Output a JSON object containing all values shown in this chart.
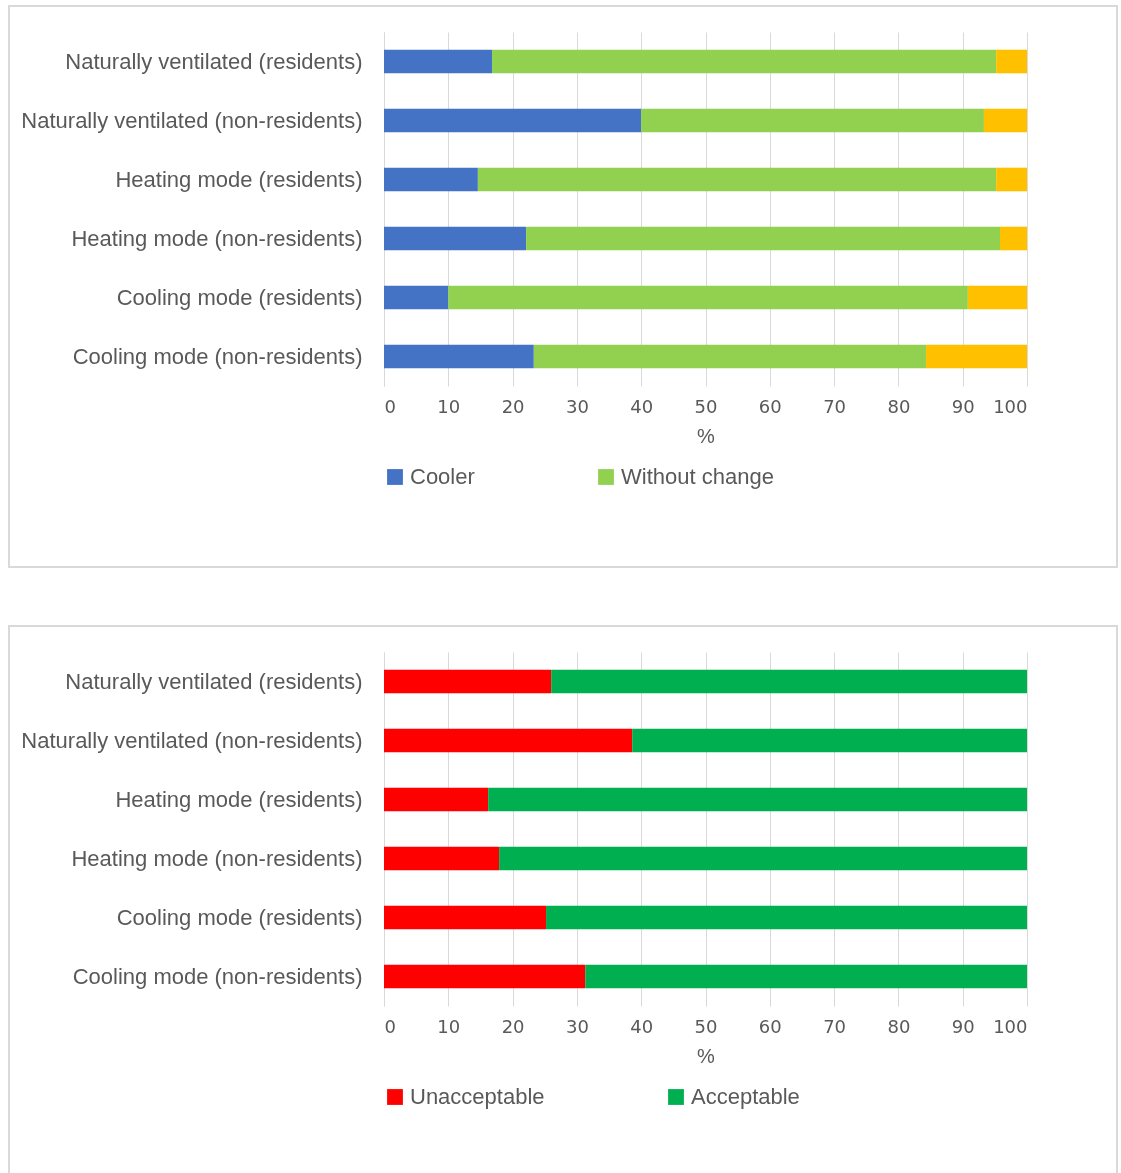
{
  "chart_data": [
    {
      "type": "bar",
      "orientation": "horizontal",
      "stacked": true,
      "categories": [
        "Naturally ventilated (residents)",
        "Naturally ventilated (non-residents)",
        "Heating mode (residents)",
        "Heating mode (non-residents)",
        "Cooling mode (residents)",
        "Cooling mode (non-residents)"
      ],
      "series": [
        {
          "name": "Cooler",
          "color": "#4472c4",
          "values": [
            16.8,
            40.0,
            14.6,
            22.1,
            10.0,
            23.3
          ]
        },
        {
          "name": "Without change",
          "color": "#92d050",
          "values": [
            78.4,
            53.3,
            80.6,
            73.7,
            80.8,
            61.0
          ]
        },
        {
          "color": "#ffc000",
          "values": [
            4.8,
            6.7,
            4.8,
            4.2,
            9.2,
            15.7
          ]
        }
      ],
      "xlabel": "%",
      "xlim": [
        0,
        100
      ],
      "xticks": [
        0,
        10,
        20,
        30,
        40,
        50,
        60,
        70,
        80,
        90,
        100
      ],
      "grid": "x",
      "legend": "bottom"
    },
    {
      "type": "bar",
      "orientation": "horizontal",
      "stacked": true,
      "categories": [
        "Naturally ventilated (residents)",
        "Naturally ventilated (non-residents)",
        "Heating mode (residents)",
        "Heating mode (non-residents)",
        "Cooling mode (residents)",
        "Cooling mode (non-residents)"
      ],
      "series": [
        {
          "name": "Unacceptable",
          "color": "#ff0000",
          "values": [
            26.0,
            38.6,
            16.2,
            17.9,
            25.2,
            31.3
          ]
        },
        {
          "name": "Acceptable",
          "color": "#00b050",
          "values": [
            74.0,
            61.4,
            83.8,
            82.1,
            74.8,
            68.7
          ]
        }
      ],
      "xlabel": "%",
      "xlim": [
        0,
        100
      ],
      "xticks": [
        0,
        10,
        20,
        30,
        40,
        50,
        60,
        70,
        80,
        90,
        100
      ],
      "grid": "x",
      "legend": "bottom"
    }
  ]
}
